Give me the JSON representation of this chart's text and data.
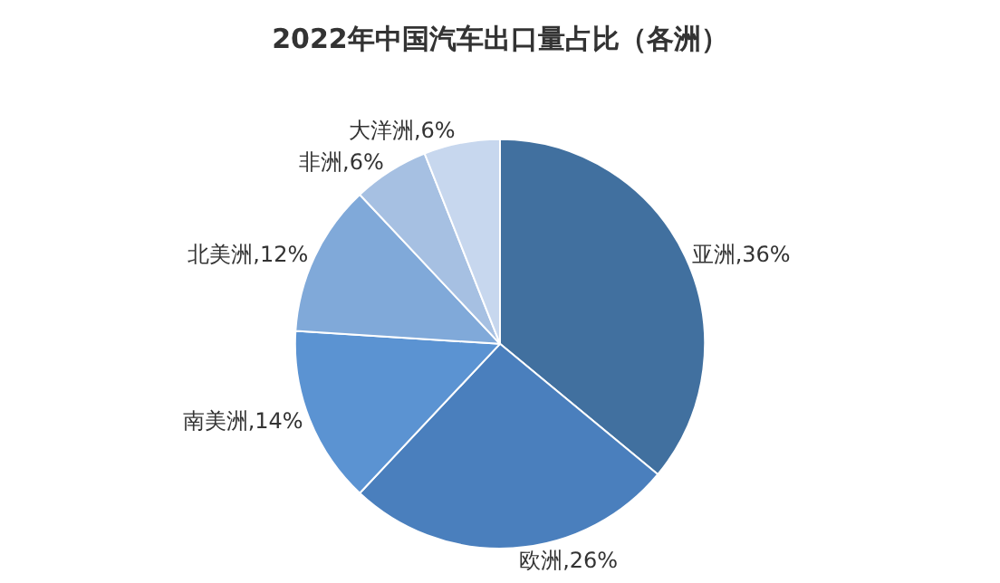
{
  "chart_data": {
    "type": "pie",
    "title": "2022年中国汽车出口量占比（各洲）",
    "categories": [
      "亚洲",
      "欧洲",
      "南美洲",
      "北美洲",
      "非洲",
      "大洋洲"
    ],
    "values": [
      36,
      26,
      14,
      12,
      6,
      6
    ],
    "value_labels": [
      "36%",
      "26%",
      "14%",
      "12%",
      "6%",
      "6%"
    ],
    "colors": [
      "#41709f",
      "#4a7fbd",
      "#5b93d2",
      "#80a9d9",
      "#a6c0e2",
      "#c7d7ee"
    ],
    "legend": false
  }
}
